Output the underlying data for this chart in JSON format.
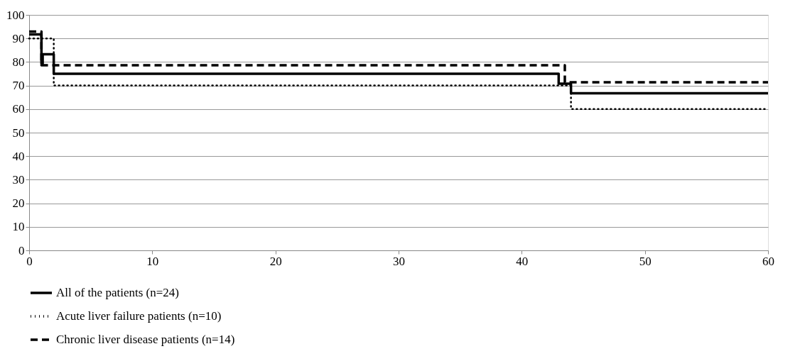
{
  "chart_data": {
    "type": "step",
    "xlim": [
      0,
      60
    ],
    "xticks": [
      0,
      10,
      20,
      30,
      40,
      50,
      60
    ],
    "ylim": [
      0,
      100
    ],
    "yticks": [
      0,
      10,
      20,
      30,
      40,
      50,
      60,
      70,
      80,
      90,
      100
    ],
    "grid": "y",
    "legend": "bottom",
    "series": [
      {
        "name": "All of the patients (n=24)",
        "color": "#000000",
        "line_style": "solid",
        "x": [
          0,
          1,
          1.1,
          2,
          43,
          44,
          60
        ],
        "values": [
          91.7,
          79.2,
          83.3,
          75,
          70.8,
          66.7,
          66.7
        ]
      },
      {
        "name": "Acute liver failure patients (n=10)",
        "color": "#000000",
        "line_style": "dotted",
        "x": [
          0,
          2,
          44,
          60
        ],
        "values": [
          90,
          70,
          60,
          60
        ]
      },
      {
        "name": "Chronic liver disease patients (n=14)",
        "color": "#000000",
        "line_style": "dashed",
        "x": [
          0,
          1,
          43.5,
          60
        ],
        "values": [
          92.9,
          78.6,
          71.4,
          71.4
        ]
      }
    ]
  }
}
